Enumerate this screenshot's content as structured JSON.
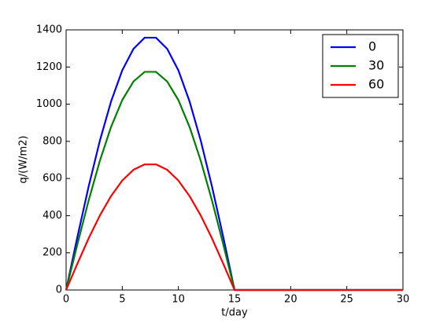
{
  "chart_data": {
    "type": "line",
    "x_label": "t/day",
    "y_label": "q/(W/m2)",
    "x": [
      0,
      1,
      2,
      3,
      4,
      5,
      6,
      7,
      8,
      9,
      10,
      11,
      12,
      13,
      14,
      15,
      16,
      17,
      18,
      19,
      20,
      21,
      22,
      23,
      24,
      25,
      26,
      27,
      28,
      29,
      30
    ],
    "series": [
      {
        "name": "0",
        "color": "#0000ff",
        "values": [
          0,
          284,
          555,
          802,
          1014,
          1182,
          1298,
          1358,
          1358,
          1298,
          1182,
          1014,
          802,
          555,
          284,
          0,
          0,
          0,
          0,
          0,
          0,
          0,
          0,
          0,
          0,
          0,
          0,
          0,
          0,
          0,
          0
        ]
      },
      {
        "name": "30",
        "color": "#008000",
        "values": [
          0,
          245,
          480,
          694,
          877,
          1022,
          1122,
          1174,
          1174,
          1122,
          1022,
          877,
          694,
          480,
          245,
          0,
          0,
          0,
          0,
          0,
          0,
          0,
          0,
          0,
          0,
          0,
          0,
          0,
          0,
          0,
          0
        ]
      },
      {
        "name": "60",
        "color": "#ff0000",
        "values": [
          0,
          141,
          277,
          400,
          505,
          589,
          647,
          676,
          676,
          647,
          589,
          505,
          400,
          277,
          141,
          0,
          0,
          0,
          0,
          0,
          0,
          0,
          0,
          0,
          0,
          0,
          0,
          0,
          0,
          0,
          0
        ]
      }
    ],
    "xlim": [
      0,
      30
    ],
    "ylim": [
      0,
      1400
    ],
    "xticks": [
      0,
      5,
      10,
      15,
      20,
      25,
      30
    ],
    "yticks": [
      0,
      200,
      400,
      600,
      800,
      1000,
      1200,
      1400
    ],
    "grid": false,
    "legend": "upper right"
  }
}
